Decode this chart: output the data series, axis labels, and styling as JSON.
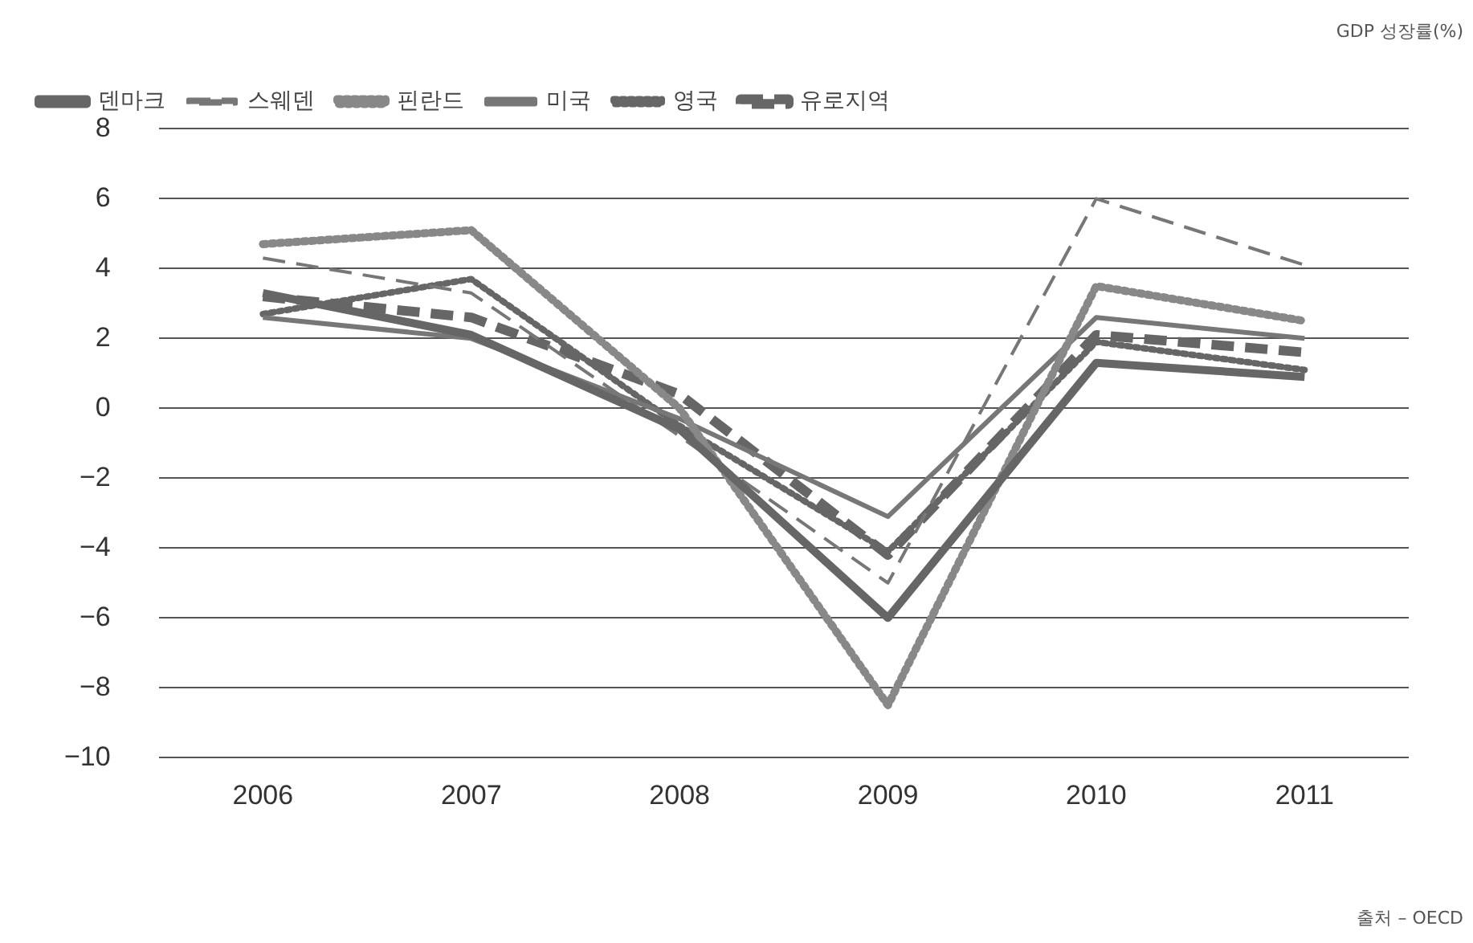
{
  "chart_data": {
    "type": "line",
    "ylabel": "GDP 성장률(%)",
    "annotations": [
      "출처 – OECD"
    ],
    "categories": [
      "2006",
      "2007",
      "2008",
      "2009",
      "2010",
      "2011"
    ],
    "series": [
      {
        "name": "덴마크",
        "color": "#666666",
        "line_style": "solid",
        "values": [
          3.3,
          2.1,
          -0.6,
          -6.0,
          1.3,
          0.9
        ]
      },
      {
        "name": "스웨덴",
        "color": "#777777",
        "line_style": "dashed",
        "values": [
          4.3,
          3.3,
          -0.8,
          -5.0,
          6.0,
          4.1
        ]
      },
      {
        "name": "핀란드",
        "color": "#888888",
        "line_style": "dotted",
        "values": [
          4.7,
          5.1,
          0.0,
          -8.5,
          3.5,
          2.5
        ]
      },
      {
        "name": "미국",
        "color": "#777777",
        "line_style": "solid",
        "values": [
          2.6,
          2.0,
          -0.3,
          -3.1,
          2.6,
          2.0
        ]
      },
      {
        "name": "영국",
        "color": "#666666",
        "line_style": "dotted",
        "values": [
          2.7,
          3.7,
          -0.5,
          -4.1,
          1.9,
          1.1
        ]
      },
      {
        "name": "유로지역",
        "color": "#666666",
        "line_style": "dashed",
        "values": [
          3.2,
          2.6,
          0.4,
          -4.2,
          2.1,
          1.6
        ]
      }
    ],
    "ylim": [
      -10,
      8
    ],
    "yticks": [
      {
        "value": -10,
        "label": "−10"
      },
      {
        "value": -8,
        "label": "−8"
      },
      {
        "value": -6,
        "label": "−6"
      },
      {
        "value": -4,
        "label": "−4"
      },
      {
        "value": -2,
        "label": "−2"
      },
      0,
      2,
      4,
      6,
      8
    ],
    "grid": "y",
    "legend": "top left",
    "marker": "none"
  }
}
